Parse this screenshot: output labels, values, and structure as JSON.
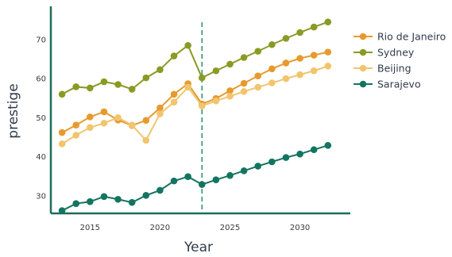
{
  "chart_data": {
    "type": "line",
    "xlabel": "Year",
    "ylabel": "prestige",
    "xlim": [
      2012.2,
      2033.6
    ],
    "ylim": [
      25.5,
      78.5
    ],
    "xticks": [
      2015,
      2020,
      2025,
      2030
    ],
    "yticks": [
      30,
      40,
      50,
      60,
      70
    ],
    "xtick_labels": [
      "2015",
      "2020",
      "2025",
      "2030"
    ],
    "ytick_labels": [
      "30",
      "40",
      "50",
      "60",
      "70"
    ],
    "grid": false,
    "legend_position": "right",
    "annotation": {
      "type": "vertical-dashed-line",
      "x": 2023
    },
    "x": [
      2013,
      2014,
      2015,
      2016,
      2017,
      2018,
      2019,
      2020,
      2021,
      2022,
      2023,
      2024,
      2025,
      2026,
      2027,
      2028,
      2029,
      2030,
      2031,
      2032
    ],
    "series": [
      {
        "name": "Rio de Janeiro",
        "color": "#e69a2e",
        "values": [
          46.2,
          48.1,
          50.2,
          51.5,
          49.4,
          48.0,
          49.3,
          52.5,
          56.0,
          58.7,
          53.5,
          54.9,
          56.9,
          58.8,
          60.7,
          62.5,
          64.0,
          65.2,
          66.0,
          66.8
        ]
      },
      {
        "name": "Sydney",
        "color": "#8a9a25",
        "values": [
          56.0,
          57.9,
          57.6,
          59.2,
          58.5,
          57.3,
          60.2,
          62.3,
          65.8,
          68.5,
          60.2,
          62.0,
          63.7,
          65.4,
          67.0,
          68.7,
          70.3,
          71.8,
          73.2,
          74.5
        ]
      },
      {
        "name": "Beijing",
        "color": "#f2c46e",
        "values": [
          43.3,
          45.5,
          47.5,
          48.6,
          50.0,
          48.1,
          44.2,
          51.0,
          54.0,
          57.8,
          53.0,
          54.3,
          55.5,
          56.7,
          57.8,
          58.9,
          60.0,
          61.0,
          62.0,
          63.2
        ]
      },
      {
        "name": "Sarajevo",
        "color": "#137561",
        "values": [
          26.2,
          28.0,
          28.5,
          29.8,
          29.1,
          28.3,
          30.1,
          31.4,
          33.8,
          34.9,
          32.9,
          34.1,
          35.2,
          36.4,
          37.6,
          38.7,
          39.8,
          40.7,
          41.8,
          42.9
        ]
      }
    ]
  }
}
